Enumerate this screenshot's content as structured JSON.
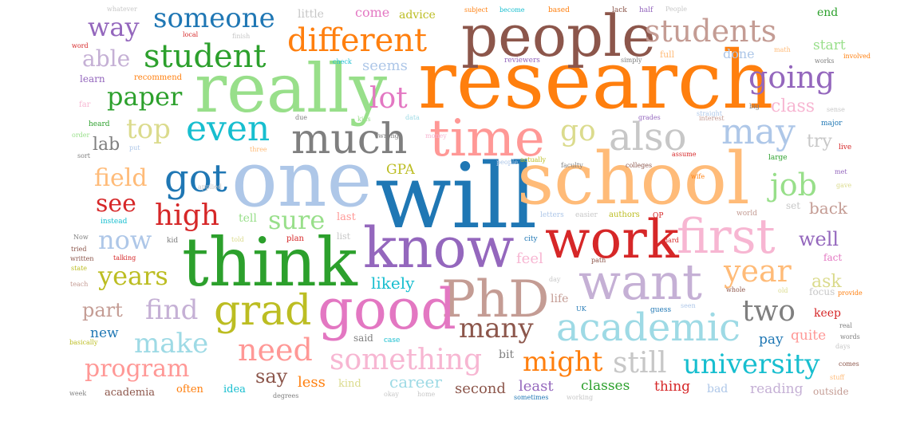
{
  "word_cloud": {
    "words": [
      {
        "text": "will",
        "color": "#1f77b4"
      },
      {
        "text": "one",
        "color": "#aec7e8"
      },
      {
        "text": "research",
        "color": "#ff7f0e"
      },
      {
        "text": "school",
        "color": "#ffbb78"
      },
      {
        "text": "think",
        "color": "#2ca02c"
      },
      {
        "text": "people",
        "color": "#8c564b"
      },
      {
        "text": "really",
        "color": "#98df8a"
      },
      {
        "text": "know",
        "color": "#9467bd"
      },
      {
        "text": "work",
        "color": "#d62728"
      },
      {
        "text": "want",
        "color": "#c5b0d5"
      },
      {
        "text": "time",
        "color": "#ff9896"
      },
      {
        "text": "PhD",
        "color": "#c49c94"
      },
      {
        "text": "good",
        "color": "#e377c2"
      },
      {
        "text": "first",
        "color": "#f7b6d2"
      },
      {
        "text": "much",
        "color": "#7f7f7f"
      },
      {
        "text": "also",
        "color": "#c7c7c7"
      },
      {
        "text": "academic",
        "color": "#9edae5"
      },
      {
        "text": "grad",
        "color": "#bcbd22"
      },
      {
        "text": "students",
        "color": "#c49c94"
      },
      {
        "text": "different",
        "color": "#ff7f0e"
      },
      {
        "text": "student",
        "color": "#2ca02c"
      },
      {
        "text": "someone",
        "color": "#1f77b4"
      },
      {
        "text": "got",
        "color": "#1f77b4"
      },
      {
        "text": "even",
        "color": "#17becf"
      },
      {
        "text": "may",
        "color": "#aec7e8"
      },
      {
        "text": "going",
        "color": "#9467bd"
      },
      {
        "text": "go",
        "color": "#dbdb8d"
      },
      {
        "text": "year",
        "color": "#ffbb78"
      },
      {
        "text": "job",
        "color": "#98df8a"
      },
      {
        "text": "something",
        "color": "#f7b6d2"
      },
      {
        "text": "university",
        "color": "#17becf"
      },
      {
        "text": "need",
        "color": "#ff9896"
      },
      {
        "text": "many",
        "color": "#8c564b"
      },
      {
        "text": "might",
        "color": "#ff7f0e"
      },
      {
        "text": "still",
        "color": "#c7c7c7"
      },
      {
        "text": "two",
        "color": "#7f7f7f"
      },
      {
        "text": "high",
        "color": "#d62728"
      },
      {
        "text": "make",
        "color": "#9edae5"
      },
      {
        "text": "find",
        "color": "#c5b0d5"
      },
      {
        "text": "program",
        "color": "#ff9896"
      },
      {
        "text": "years",
        "color": "#bcbd22"
      },
      {
        "text": "now",
        "color": "#aec7e8"
      },
      {
        "text": "paper",
        "color": "#2ca02c"
      },
      {
        "text": "top",
        "color": "#dbdb8d"
      },
      {
        "text": "field",
        "color": "#ffbb78"
      },
      {
        "text": "see",
        "color": "#d62728"
      },
      {
        "text": "way",
        "color": "#9467bd"
      },
      {
        "text": "able",
        "color": "#c5b0d5"
      },
      {
        "text": "lot",
        "color": "#e377c2"
      },
      {
        "text": "sure",
        "color": "#98df8a"
      },
      {
        "text": "well",
        "color": "#9467bd"
      },
      {
        "text": "class",
        "color": "#f7b6d2"
      },
      {
        "text": "try",
        "color": "#c7c7c7"
      },
      {
        "text": "back",
        "color": "#c49c94"
      },
      {
        "text": "ask",
        "color": "#dbdb8d"
      },
      {
        "text": "say",
        "color": "#8c564b"
      },
      {
        "text": "part",
        "color": "#c49c94"
      },
      {
        "text": "lab",
        "color": "#7f7f7f"
      },
      {
        "text": "likely",
        "color": "#17becf"
      },
      {
        "text": "feel",
        "color": "#f7b6d2"
      },
      {
        "text": "career",
        "color": "#9edae5"
      },
      {
        "text": "less",
        "color": "#ff7f0e"
      },
      {
        "text": "second",
        "color": "#8c564b"
      },
      {
        "text": "least",
        "color": "#9467bd"
      },
      {
        "text": "classes",
        "color": "#2ca02c"
      },
      {
        "text": "thing",
        "color": "#d62728"
      },
      {
        "text": "reading",
        "color": "#c5b0d5"
      },
      {
        "text": "pay",
        "color": "#1f77b4"
      },
      {
        "text": "quite",
        "color": "#ff9896"
      },
      {
        "text": "keep",
        "color": "#d62728"
      },
      {
        "text": "new",
        "color": "#1f77b4"
      },
      {
        "text": "seems",
        "color": "#aec7e8"
      },
      {
        "text": "done",
        "color": "#aec7e8"
      },
      {
        "text": "start",
        "color": "#98df8a"
      },
      {
        "text": "end",
        "color": "#2ca02c"
      },
      {
        "text": "GPA",
        "color": "#bcbd22"
      },
      {
        "text": "advice",
        "color": "#bcbd22"
      },
      {
        "text": "come",
        "color": "#e377c2"
      },
      {
        "text": "little",
        "color": "#c7c7c7"
      },
      {
        "text": "recommend",
        "color": "#ff7f0e"
      },
      {
        "text": "learn",
        "color": "#9467bd"
      },
      {
        "text": "heard",
        "color": "#2ca02c"
      },
      {
        "text": "applied",
        "color": "#c7c7c7"
      },
      {
        "text": "instead",
        "color": "#17becf"
      },
      {
        "text": "tell",
        "color": "#98df8a"
      },
      {
        "text": "last",
        "color": "#ff9896"
      },
      {
        "text": "plan",
        "color": "#d62728"
      },
      {
        "text": "list",
        "color": "#c7c7c7"
      },
      {
        "text": "told",
        "color": "#dbdb8d"
      },
      {
        "text": "kid",
        "color": "#7f7f7f"
      },
      {
        "text": "academia",
        "color": "#8c564b"
      },
      {
        "text": "often",
        "color": "#ff7f0e"
      },
      {
        "text": "idea",
        "color": "#17becf"
      },
      {
        "text": "kind",
        "color": "#dbdb8d"
      },
      {
        "text": "degrees",
        "color": "#7f7f7f"
      },
      {
        "text": "said",
        "color": "#7f7f7f"
      },
      {
        "text": "case",
        "color": "#17becf"
      },
      {
        "text": "bit",
        "color": "#7f7f7f"
      },
      {
        "text": "life",
        "color": "#c49c94"
      },
      {
        "text": "guess",
        "color": "#1f77b4"
      },
      {
        "text": "bad",
        "color": "#aec7e8"
      },
      {
        "text": "outside",
        "color": "#c49c94"
      },
      {
        "text": "fact",
        "color": "#e377c2"
      },
      {
        "text": "authors",
        "color": "#bcbd22"
      },
      {
        "text": "letters",
        "color": "#aec7e8"
      },
      {
        "text": "easier",
        "color": "#c7c7c7"
      },
      {
        "text": "OP",
        "color": "#d62728"
      },
      {
        "text": "world",
        "color": "#c49c94"
      },
      {
        "text": "set",
        "color": "#c7c7c7"
      },
      {
        "text": "met",
        "color": "#9467bd"
      },
      {
        "text": "gave",
        "color": "#dbdb8d"
      },
      {
        "text": "major",
        "color": "#1f77b4"
      },
      {
        "text": "live",
        "color": "#d62728"
      },
      {
        "text": "large",
        "color": "#2ca02c"
      },
      {
        "text": "sense",
        "color": "#c7c7c7"
      },
      {
        "text": "big",
        "color": "#7f7f7f"
      },
      {
        "text": "math",
        "color": "#ffbb78"
      },
      {
        "text": "full",
        "color": "#ffbb78"
      },
      {
        "text": "simply",
        "color": "#7f7f7f"
      },
      {
        "text": "reviewers",
        "color": "#9467bd"
      },
      {
        "text": "check",
        "color": "#17becf"
      },
      {
        "text": "finish",
        "color": "#c7c7c7"
      },
      {
        "text": "local",
        "color": "#d62728"
      },
      {
        "text": "subject",
        "color": "#ff7f0e"
      },
      {
        "text": "become",
        "color": "#17becf"
      },
      {
        "text": "based",
        "color": "#ff7f0e"
      },
      {
        "text": "lack",
        "color": "#8c564b"
      },
      {
        "text": "half",
        "color": "#9467bd"
      },
      {
        "text": "whatever",
        "color": "#c7c7c7"
      },
      {
        "text": "word",
        "color": "#d62728"
      },
      {
        "text": "far",
        "color": "#f7b6d2"
      },
      {
        "text": "put",
        "color": "#aec7e8"
      },
      {
        "text": "three",
        "color": "#ffbb78"
      },
      {
        "text": "due",
        "color": "#7f7f7f"
      },
      {
        "text": "kids",
        "color": "#98df8a"
      },
      {
        "text": "data",
        "color": "#9edae5"
      },
      {
        "text": "wife",
        "color": "#ff7f0e"
      },
      {
        "text": "city",
        "color": "#1f77b4"
      },
      {
        "text": "sort",
        "color": "#7f7f7f"
      },
      {
        "text": "order",
        "color": "#98df8a"
      },
      {
        "text": "tried",
        "color": "#8c564b"
      },
      {
        "text": "Now",
        "color": "#7f7f7f"
      },
      {
        "text": "written",
        "color": "#8c564b"
      },
      {
        "text": "state",
        "color": "#bcbd22"
      },
      {
        "text": "teach",
        "color": "#c49c94"
      },
      {
        "text": "talking",
        "color": "#d62728"
      },
      {
        "text": "day",
        "color": "#c7c7c7"
      },
      {
        "text": "whole",
        "color": "#8c564b"
      },
      {
        "text": "old",
        "color": "#dbdb8d"
      },
      {
        "text": "focus",
        "color": "#c7c7c7"
      },
      {
        "text": "provide",
        "color": "#ff7f0e"
      },
      {
        "text": "real",
        "color": "#7f7f7f"
      },
      {
        "text": "words",
        "color": "#7f7f7f"
      },
      {
        "text": "days",
        "color": "#c7c7c7"
      },
      {
        "text": "comes",
        "color": "#8c564b"
      },
      {
        "text": "stuff",
        "color": "#ffbb78"
      },
      {
        "text": "UK",
        "color": "#1f77b4"
      },
      {
        "text": "week",
        "color": "#7f7f7f"
      },
      {
        "text": "okay",
        "color": "#c7c7c7"
      },
      {
        "text": "home",
        "color": "#c7c7c7"
      },
      {
        "text": "sometimes",
        "color": "#1f77b4"
      },
      {
        "text": "working",
        "color": "#c7c7c7"
      },
      {
        "text": "path",
        "color": "#8c564b"
      },
      {
        "text": "seen",
        "color": "#aec7e8"
      },
      {
        "text": "works",
        "color": "#7f7f7f"
      },
      {
        "text": "involved",
        "color": "#ff7f0e"
      },
      {
        "text": "People",
        "color": "#c7c7c7"
      },
      {
        "text": "assume",
        "color": "#d62728"
      },
      {
        "text": "straight",
        "color": "#aec7e8"
      },
      {
        "text": "hard",
        "color": "#d62728"
      },
      {
        "text": "basically",
        "color": "#bcbd22"
      },
      {
        "text": "wrong",
        "color": "#7f7f7f"
      },
      {
        "text": "money",
        "color": "#f7b6d2"
      },
      {
        "text": "people",
        "color": "#aec7e8"
      },
      {
        "text": "actually",
        "color": "#bcbd22"
      },
      {
        "text": "faculty",
        "color": "#7f7f7f"
      },
      {
        "text": "colleges",
        "color": "#8c564b"
      },
      {
        "text": "grades",
        "color": "#9467bd"
      },
      {
        "text": "interest",
        "color": "#c49c94"
      },
      {
        "text": "support",
        "color": "#7f7f7f"
      },
      {
        "text": "options",
        "color": "#d62728"
      },
      {
        "text": "friends",
        "color": "#2ca02c"
      }
    ]
  }
}
